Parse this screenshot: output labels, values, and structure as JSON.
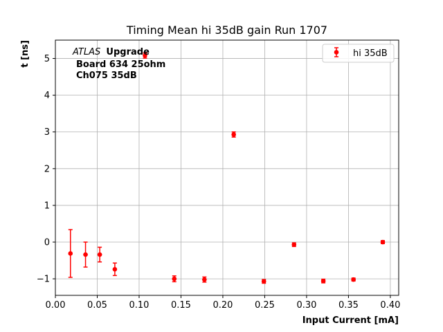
{
  "chart_data": {
    "type": "scatter",
    "title": "Timing Mean hi 35dB gain Run 1707",
    "xlabel": "Input Current [mA]",
    "ylabel": "t [ns]",
    "xlim": [
      0.0,
      0.41
    ],
    "ylim": [
      -1.45,
      5.5
    ],
    "xticks": [
      0.0,
      0.05,
      0.1,
      0.15,
      0.2,
      0.25,
      0.3,
      0.35,
      0.4
    ],
    "xtick_labels": [
      "0.00",
      "0.05",
      "0.10",
      "0.15",
      "0.20",
      "0.25",
      "0.30",
      "0.35",
      "0.40"
    ],
    "yticks": [
      -1,
      0,
      1,
      2,
      3,
      4,
      5
    ],
    "ytick_labels": [
      "−1",
      "0",
      "1",
      "2",
      "3",
      "4",
      "5"
    ],
    "grid": true,
    "legend_position": "top-right",
    "series": [
      {
        "name": "hi 35dB",
        "color": "#ff0000",
        "marker": "circle",
        "x": [
          0.018,
          0.036,
          0.053,
          0.071,
          0.107,
          0.142,
          0.178,
          0.213,
          0.249,
          0.285,
          0.32,
          0.356,
          0.391
        ],
        "y": [
          -0.31,
          -0.34,
          -0.34,
          -0.74,
          5.08,
          -1.0,
          -1.02,
          2.93,
          -1.07,
          -0.07,
          -1.06,
          -1.02,
          0.0
        ],
        "yerr": [
          0.65,
          0.34,
          0.2,
          0.17,
          0.07,
          0.08,
          0.07,
          0.07,
          0.05,
          0.05,
          0.05,
          0.04,
          0.04
        ]
      }
    ],
    "annotation": {
      "atlas": "ATLAS",
      "upgrade": "Upgrade",
      "line2": "Board 634 25ohm",
      "line3": "Ch075 35dB"
    }
  }
}
